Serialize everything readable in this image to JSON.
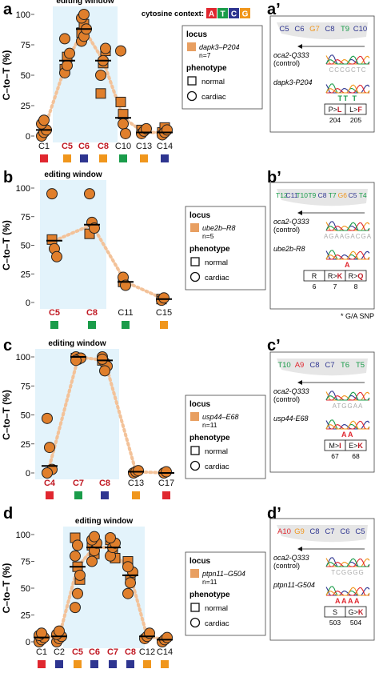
{
  "legend": {
    "locus_label": "locus",
    "phenotype_label": "phenotype",
    "normal_label": "normal",
    "cardiac_label": "cardiac"
  },
  "bases": {
    "letters": [
      "A",
      "T",
      "C",
      "G"
    ],
    "colors": {
      "A": "#e0272f",
      "T": "#1a9c4a",
      "C": "#2e3590",
      "G": "#f0961c"
    }
  },
  "colors": {
    "point_fill": "#e07f2c",
    "window": "#e3f3fb",
    "dotted_line": "#f3c299",
    "edited_label": "#c01923"
  },
  "chart_data": [
    {
      "panel": "a",
      "type": "scatter",
      "window_label": "editing window",
      "context_label": "cytosine context:",
      "ylabel": "C–to–T (%)",
      "ylim": [
        0,
        100
      ],
      "yticks": [
        0,
        25,
        50,
        75,
        100
      ],
      "categories": [
        "C1",
        "C5",
        "C6",
        "C8",
        "C10",
        "C13",
        "C14"
      ],
      "edited": [
        false,
        true,
        true,
        true,
        false,
        false,
        false
      ],
      "context": [
        "A",
        "G",
        "C",
        "G",
        "T",
        "G",
        "C"
      ],
      "window": [
        1,
        3
      ],
      "locus": "dapk3–P204",
      "n_label": "n=7",
      "means": [
        5,
        62,
        88,
        62,
        15,
        3,
        3
      ],
      "normal": [
        [],
        [
          55,
          65
        ],
        [
          85,
          92
        ],
        [
          35,
          60,
          70
        ],
        [
          28,
          18
        ],
        [
          5
        ],
        [
          3,
          7
        ]
      ],
      "cardiac": [
        [
          0,
          3,
          5,
          10,
          13
        ],
        [
          52,
          58,
          68,
          80
        ],
        [
          78,
          82,
          88,
          97,
          100
        ],
        [
          50,
          62,
          72
        ],
        [
          70,
          10,
          2
        ],
        [
          2,
          4,
          6
        ],
        [
          1,
          3,
          5
        ]
      ]
    },
    {
      "panel": "b",
      "type": "scatter",
      "window_label": "editing window",
      "ylabel": "C–to–T (%)",
      "ylim": [
        0,
        100
      ],
      "yticks": [
        0,
        25,
        50,
        75,
        100
      ],
      "categories": [
        "C5",
        "C8",
        "C11",
        "C15"
      ],
      "edited": [
        true,
        true,
        false,
        false
      ],
      "context": [
        "T",
        "T",
        "T",
        "G"
      ],
      "window": [
        0,
        1
      ],
      "locus": "ube2b–R8",
      "n_label": "n=5",
      "means": [
        54,
        68,
        18,
        3
      ],
      "normal": [
        [
          55
        ],
        [
          60
        ],
        [
          18
        ],
        [
          3
        ]
      ],
      "cardiac": [
        [
          95,
          47,
          40
        ],
        [
          95,
          70,
          65
        ],
        [
          22,
          15
        ],
        [
          2,
          4
        ]
      ]
    },
    {
      "panel": "c",
      "type": "scatter",
      "window_label": "editing window",
      "ylabel": "C–to–T (%)",
      "ylim": [
        0,
        100
      ],
      "yticks": [
        0,
        25,
        50,
        75,
        100
      ],
      "categories": [
        "C4",
        "C7",
        "C8",
        "C13",
        "C17"
      ],
      "edited": [
        true,
        true,
        true,
        false,
        false
      ],
      "context": [
        "A",
        "T",
        "C",
        "G",
        "A"
      ],
      "window": [
        0,
        2
      ],
      "locus": "usp44–E68",
      "n_label": "n=11",
      "means": [
        6,
        100,
        97,
        1,
        0
      ],
      "normal": [
        [],
        [
          99
        ],
        [
          97
        ],
        [],
        []
      ],
      "cardiac": [
        [
          47,
          22,
          3,
          0
        ],
        [
          100,
          98,
          99,
          97
        ],
        [
          100,
          95,
          92,
          98,
          88
        ],
        [
          0,
          1,
          2
        ],
        [
          0,
          1
        ]
      ]
    },
    {
      "panel": "d",
      "type": "scatter",
      "window_label": "editing window",
      "ylabel": "C–to–T (%)",
      "ylim": [
        0,
        100
      ],
      "yticks": [
        0,
        25,
        50,
        75,
        100
      ],
      "categories": [
        "C1",
        "C2",
        "C5",
        "C6",
        "C7",
        "C8",
        "C12",
        "C14"
      ],
      "edited": [
        false,
        false,
        true,
        true,
        true,
        true,
        false,
        false
      ],
      "context": [
        "A",
        "C",
        "G",
        "C",
        "C",
        "C",
        "G",
        "G"
      ],
      "window": [
        2,
        5
      ],
      "locus": "ptpn11–G504",
      "n_label": "n=11",
      "means": [
        4,
        5,
        70,
        88,
        88,
        62,
        5,
        2
      ],
      "normal": [
        [],
        [],
        [
          97,
          70,
          58
        ],
        [
          90,
          82
        ],
        [
          95,
          85,
          78
        ],
        [
          75,
          58
        ],
        [],
        []
      ],
      "cardiac": [
        [
          0,
          2,
          4,
          6,
          8
        ],
        [
          0,
          3,
          5,
          7,
          10
        ],
        [
          32,
          45,
          62,
          80,
          90
        ],
        [
          75,
          85,
          92,
          95,
          98
        ],
        [
          80,
          88,
          92,
          97
        ],
        [
          45,
          55,
          65,
          70
        ],
        [
          3,
          5,
          8
        ],
        [
          0,
          2,
          4
        ]
      ]
    }
  ],
  "insets": [
    {
      "panel": "a’",
      "seq": [
        {
          "base": "C",
          "label": "C5"
        },
        {
          "base": "C",
          "label": "C6"
        },
        {
          "base": "G",
          "label": "G7"
        },
        {
          "base": "C",
          "label": "C8"
        },
        {
          "base": "T",
          "label": "T9"
        },
        {
          "base": "C",
          "label": "C10"
        }
      ],
      "control_name": "oca2-Q333",
      "control_sub": "(control)",
      "sample_name": "dapk3-P204",
      "control_letters": "CCCGCTC",
      "sample_letters": "TT T",
      "codons": [
        {
          "parts": [
            {
              "t": "P",
              "edit": false
            },
            {
              "t": ">",
              "edit": false
            },
            {
              "t": "L",
              "edit": true
            }
          ],
          "pos": "204"
        },
        {
          "parts": [
            {
              "t": "L",
              "edit": false
            },
            {
              "t": ">",
              "edit": false
            },
            {
              "t": "F",
              "edit": true
            }
          ],
          "pos": "205"
        }
      ]
    },
    {
      "panel": "b’",
      "seq": [
        {
          "base": "T",
          "label": "T12"
        },
        {
          "base": "C",
          "label": "C11"
        },
        {
          "base": "T",
          "label": "T10"
        },
        {
          "base": "T",
          "label": "T9"
        },
        {
          "base": "C",
          "label": "C8"
        },
        {
          "base": "T",
          "label": "T7"
        },
        {
          "base": "G",
          "label": "G6"
        },
        {
          "base": "C",
          "label": "C5"
        },
        {
          "base": "T",
          "label": "T4"
        }
      ],
      "control_name": "oca2-Q333",
      "control_sub": "(control)",
      "sample_name": "ube2b-R8",
      "control_letters": "AGAAGACGA",
      "sample_letters": "A",
      "codons": [
        {
          "parts": [
            {
              "t": "R",
              "edit": false
            }
          ],
          "pos": "6"
        },
        {
          "parts": [
            {
              "t": "R",
              "edit": false
            },
            {
              "t": ">",
              "edit": false
            },
            {
              "t": "K",
              "edit": true
            }
          ],
          "pos": "7"
        },
        {
          "parts": [
            {
              "t": "R",
              "edit": false
            },
            {
              "t": ">",
              "edit": false
            },
            {
              "t": "Q",
              "edit": true
            }
          ],
          "pos": "8"
        }
      ],
      "footnote": "* G/A SNP"
    },
    {
      "panel": "c’",
      "seq": [
        {
          "base": "T",
          "label": "T10"
        },
        {
          "base": "A",
          "label": "A9"
        },
        {
          "base": "C",
          "label": "C8"
        },
        {
          "base": "C",
          "label": "C7"
        },
        {
          "base": "T",
          "label": "T6"
        },
        {
          "base": "T",
          "label": "T5"
        }
      ],
      "control_name": "oca2-Q333",
      "control_sub": "(control)",
      "sample_name": "usp44-E68",
      "control_letters": "ATGGAA",
      "sample_letters": "AA",
      "codons": [
        {
          "parts": [
            {
              "t": "M",
              "edit": false
            },
            {
              "t": ">",
              "edit": false
            },
            {
              "t": "I",
              "edit": true
            }
          ],
          "pos": "67"
        },
        {
          "parts": [
            {
              "t": "E",
              "edit": false
            },
            {
              "t": ">",
              "edit": false
            },
            {
              "t": "K",
              "edit": true
            }
          ],
          "pos": "68"
        }
      ]
    },
    {
      "panel": "d’",
      "seq": [
        {
          "base": "A",
          "label": "A10"
        },
        {
          "base": "G",
          "label": "G9"
        },
        {
          "base": "C",
          "label": "C8"
        },
        {
          "base": "C",
          "label": "C7"
        },
        {
          "base": "C",
          "label": "C6"
        },
        {
          "base": "C",
          "label": "C5"
        }
      ],
      "control_name": "oca2-Q333",
      "control_sub": "(control)",
      "sample_name": "ptpn11-G504",
      "control_letters": "TCGGGG",
      "sample_letters": "AAAA",
      "codons": [
        {
          "parts": [
            {
              "t": "S",
              "edit": false
            }
          ],
          "pos": "503"
        },
        {
          "parts": [
            {
              "t": "G",
              "edit": false
            },
            {
              "t": ">",
              "edit": false
            },
            {
              "t": "K",
              "edit": true
            }
          ],
          "pos": "504"
        }
      ]
    }
  ]
}
